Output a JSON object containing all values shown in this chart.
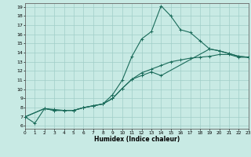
{
  "title": "",
  "xlabel": "Humidex (Indice chaleur)",
  "xlim": [
    0,
    23
  ],
  "ylim": [
    6,
    19
  ],
  "yticks": [
    6,
    7,
    8,
    9,
    10,
    11,
    12,
    13,
    14,
    15,
    16,
    17,
    18,
    19
  ],
  "xticks": [
    0,
    1,
    2,
    3,
    4,
    5,
    6,
    7,
    8,
    9,
    10,
    11,
    12,
    13,
    14,
    15,
    16,
    17,
    18,
    19,
    20,
    21,
    22,
    23
  ],
  "line_color": "#1a6b5a",
  "marker": "+",
  "bg_color": "#c8eae4",
  "grid_color": "#a0cec8",
  "line1_x": [
    0,
    1,
    2,
    3,
    4,
    5,
    6,
    7,
    8,
    9,
    10,
    11,
    12,
    13,
    14,
    15,
    16,
    17,
    18,
    19,
    20,
    21,
    22,
    23
  ],
  "line1_y": [
    7.0,
    6.3,
    7.9,
    7.8,
    7.7,
    7.7,
    8.0,
    8.2,
    8.4,
    9.4,
    11.0,
    13.6,
    15.5,
    16.3,
    19.1,
    18.0,
    16.5,
    16.2,
    15.3,
    14.4,
    14.2,
    13.9,
    13.6,
    13.5
  ],
  "line2_x": [
    0,
    2,
    3,
    4,
    5,
    6,
    7,
    8,
    9,
    10,
    11,
    12,
    13,
    14,
    15,
    16,
    17,
    18,
    19,
    20,
    21,
    22,
    23
  ],
  "line2_y": [
    7.0,
    7.9,
    7.7,
    7.7,
    7.7,
    8.0,
    8.2,
    8.4,
    9.0,
    10.1,
    11.1,
    11.8,
    12.2,
    12.6,
    13.0,
    13.2,
    13.4,
    13.5,
    13.6,
    13.8,
    13.8,
    13.5,
    13.5
  ],
  "line3_x": [
    0,
    2,
    3,
    4,
    5,
    6,
    7,
    8,
    9,
    10,
    11,
    12,
    13,
    14,
    19,
    20,
    21,
    22,
    23
  ],
  "line3_y": [
    7.0,
    7.9,
    7.7,
    7.7,
    7.7,
    8.0,
    8.2,
    8.4,
    9.0,
    10.1,
    11.1,
    11.5,
    11.9,
    11.5,
    14.4,
    14.2,
    13.9,
    13.6,
    13.5
  ]
}
